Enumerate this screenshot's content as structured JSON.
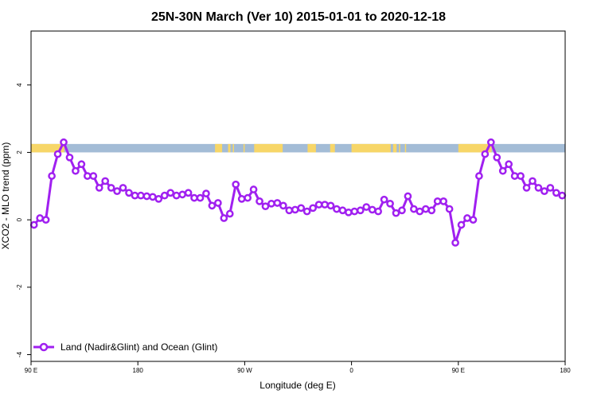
{
  "chart_data": {
    "type": "line",
    "title": "25N-30N March (Ver 10)   2015-01-01 to 2020-12-18",
    "xlabel": "Longitude (deg E)",
    "ylabel": "XCO2 - MLO trend (ppm)",
    "xlim": [
      90,
      540
    ],
    "ylim": [
      -4.2,
      5.6
    ],
    "xticks": [
      {
        "value": 90,
        "label": "90 E"
      },
      {
        "value": 180,
        "label": "180"
      },
      {
        "value": 270,
        "label": "90 W"
      },
      {
        "value": 360,
        "label": "0"
      },
      {
        "value": 450,
        "label": "90 E"
      },
      {
        "value": 540,
        "label": "180"
      }
    ],
    "yticks": [
      {
        "value": -4,
        "label": "-4"
      },
      {
        "value": -2,
        "label": "-2"
      },
      {
        "value": 0,
        "label": "0"
      },
      {
        "value": 2,
        "label": "2"
      },
      {
        "value": 4,
        "label": "4"
      }
    ],
    "grid": false,
    "legend_position": "bottom-left",
    "land_strip": {
      "y_range": [
        2.0,
        2.25
      ],
      "ocean_color": "#a3bcd6",
      "land_color": "#f7d668",
      "land_spans": [
        [
          90,
          118
        ],
        [
          245,
          251
        ],
        [
          256,
          258
        ],
        [
          260,
          261
        ],
        [
          269,
          270
        ],
        [
          278,
          302
        ],
        [
          323,
          330
        ],
        [
          342,
          346
        ],
        [
          360,
          393
        ],
        [
          395,
          398
        ],
        [
          400,
          401
        ],
        [
          405,
          406
        ],
        [
          450,
          478
        ]
      ]
    },
    "series": [
      {
        "name": "Land (Nadir&Glint) and Ocean (Glint)",
        "color": "#a020f0",
        "x": [
          92.5,
          97.5,
          102.5,
          107.5,
          112.5,
          117.5,
          122.5,
          127.5,
          132.5,
          137.5,
          142.5,
          147.5,
          152.5,
          157.5,
          162.5,
          167.5,
          172.5,
          177.5,
          182.5,
          187.5,
          192.5,
          197.5,
          202.5,
          207.5,
          212.5,
          217.5,
          222.5,
          227.5,
          232.5,
          237.5,
          242.5,
          247.5,
          252.5,
          257.5,
          262.5,
          267.5,
          272.5,
          277.5,
          282.5,
          287.5,
          292.5,
          297.5,
          302.5,
          307.5,
          312.5,
          317.5,
          322.5,
          327.5,
          332.5,
          337.5,
          342.5,
          347.5,
          352.5,
          357.5,
          362.5,
          367.5,
          372.5,
          377.5,
          382.5,
          387.5,
          392.5,
          397.5,
          402.5,
          407.5,
          412.5,
          417.5,
          422.5,
          427.5,
          432.5,
          437.5,
          442.5,
          447.5,
          452.5,
          457.5,
          462.5,
          467.5,
          472.5,
          477.5,
          482.5,
          487.5,
          492.5,
          497.5,
          502.5,
          507.5,
          512.5,
          517.5,
          522.5,
          527.5,
          532.5,
          537.5
        ],
        "y": [
          -0.15,
          0.05,
          0.0,
          1.3,
          1.95,
          2.3,
          1.85,
          1.45,
          1.65,
          1.3,
          1.3,
          0.95,
          1.15,
          0.95,
          0.85,
          0.95,
          0.8,
          0.72,
          0.72,
          0.7,
          0.68,
          0.62,
          0.72,
          0.8,
          0.72,
          0.75,
          0.8,
          0.65,
          0.65,
          0.78,
          0.42,
          0.5,
          0.05,
          0.18,
          1.05,
          0.62,
          0.65,
          0.9,
          0.55,
          0.4,
          0.48,
          0.5,
          0.42,
          0.28,
          0.3,
          0.35,
          0.25,
          0.35,
          0.45,
          0.45,
          0.42,
          0.32,
          0.28,
          0.22,
          0.25,
          0.28,
          0.38,
          0.3,
          0.25,
          0.6,
          0.48,
          0.2,
          0.28,
          0.7,
          0.32,
          0.25,
          0.32,
          0.28,
          0.55,
          0.55,
          0.32,
          -0.68,
          -0.15,
          0.05,
          0.0,
          1.3,
          1.95,
          2.3,
          1.85,
          1.45,
          1.65,
          1.3,
          1.3,
          0.95,
          1.15,
          0.95,
          0.85,
          0.95,
          0.8,
          0.72
        ]
      }
    ]
  }
}
